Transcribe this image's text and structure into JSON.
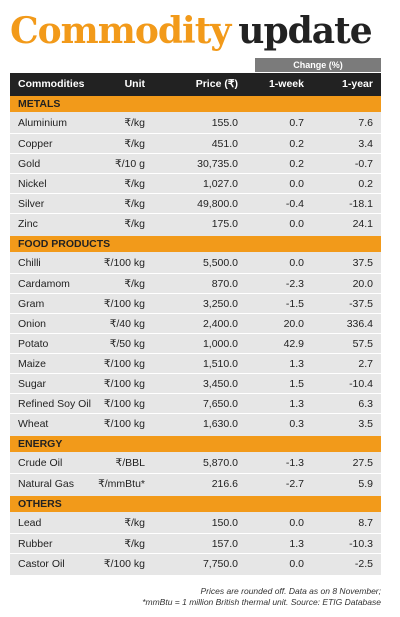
{
  "title": {
    "part1": "Commodity",
    "part2": "update"
  },
  "change_header": "Change (%)",
  "columns": {
    "name": "Commodities",
    "unit": "Unit",
    "price": "Price (₹)",
    "week": "1-week",
    "year": "1-year"
  },
  "sections": [
    {
      "label": "METALS",
      "rows": [
        {
          "name": "Aluminium",
          "unit": "₹/kg",
          "price": "155.0",
          "week": "0.7",
          "year": "7.6"
        },
        {
          "name": "Copper",
          "unit": "₹/kg",
          "price": "451.0",
          "week": "0.2",
          "year": "3.4"
        },
        {
          "name": "Gold",
          "unit": "₹/10 g",
          "price": "30,735.0",
          "week": "0.2",
          "year": "-0.7"
        },
        {
          "name": "Nickel",
          "unit": "₹/kg",
          "price": "1,027.0",
          "week": "0.0",
          "year": "0.2"
        },
        {
          "name": "Silver",
          "unit": "₹/kg",
          "price": "49,800.0",
          "week": "-0.4",
          "year": "-18.1"
        },
        {
          "name": "Zinc",
          "unit": "₹/kg",
          "price": "175.0",
          "week": "0.0",
          "year": "24.1"
        }
      ]
    },
    {
      "label": "FOOD PRODUCTS",
      "rows": [
        {
          "name": "Chilli",
          "unit": "₹/100 kg",
          "price": "5,500.0",
          "week": "0.0",
          "year": "37.5"
        },
        {
          "name": "Cardamom",
          "unit": "₹/kg",
          "price": "870.0",
          "week": "-2.3",
          "year": "20.0"
        },
        {
          "name": "Gram",
          "unit": "₹/100 kg",
          "price": "3,250.0",
          "week": "-1.5",
          "year": "-37.5"
        },
        {
          "name": "Onion",
          "unit": "₹/40 kg",
          "price": "2,400.0",
          "week": "20.0",
          "year": "336.4"
        },
        {
          "name": "Potato",
          "unit": "₹/50 kg",
          "price": "1,000.0",
          "week": "42.9",
          "year": "57.5"
        },
        {
          "name": "Maize",
          "unit": "₹/100 kg",
          "price": "1,510.0",
          "week": "1.3",
          "year": "2.7"
        },
        {
          "name": "Sugar",
          "unit": "₹/100 kg",
          "price": "3,450.0",
          "week": "1.5",
          "year": "-10.4"
        },
        {
          "name": "Refined Soy Oil",
          "unit": "₹/100 kg",
          "price": "7,650.0",
          "week": "1.3",
          "year": "6.3"
        },
        {
          "name": "Wheat",
          "unit": "₹/100 kg",
          "price": "1,630.0",
          "week": "0.3",
          "year": "3.5"
        }
      ]
    },
    {
      "label": "ENERGY",
      "rows": [
        {
          "name": "Crude Oil",
          "unit": "₹/BBL",
          "price": "5,870.0",
          "week": "-1.3",
          "year": "27.5"
        },
        {
          "name": "Natural Gas",
          "unit": "₹/mmBtu*",
          "price": "216.6",
          "week": "-2.7",
          "year": "5.9"
        }
      ]
    },
    {
      "label": "OTHERS",
      "rows": [
        {
          "name": "Lead",
          "unit": "₹/kg",
          "price": "150.0",
          "week": "0.0",
          "year": "8.7"
        },
        {
          "name": "Rubber",
          "unit": "₹/kg",
          "price": "157.0",
          "week": "1.3",
          "year": "-10.3"
        },
        {
          "name": "Castor Oil",
          "unit": "₹/100 kg",
          "price": "7,750.0",
          "week": "0.0",
          "year": "-2.5"
        }
      ]
    }
  ],
  "footnote": {
    "line1": "Prices are rounded off. Data as on 8 November;",
    "line2": "*mmBtu = 1 million British thermal unit. Source: ETIG Database"
  }
}
